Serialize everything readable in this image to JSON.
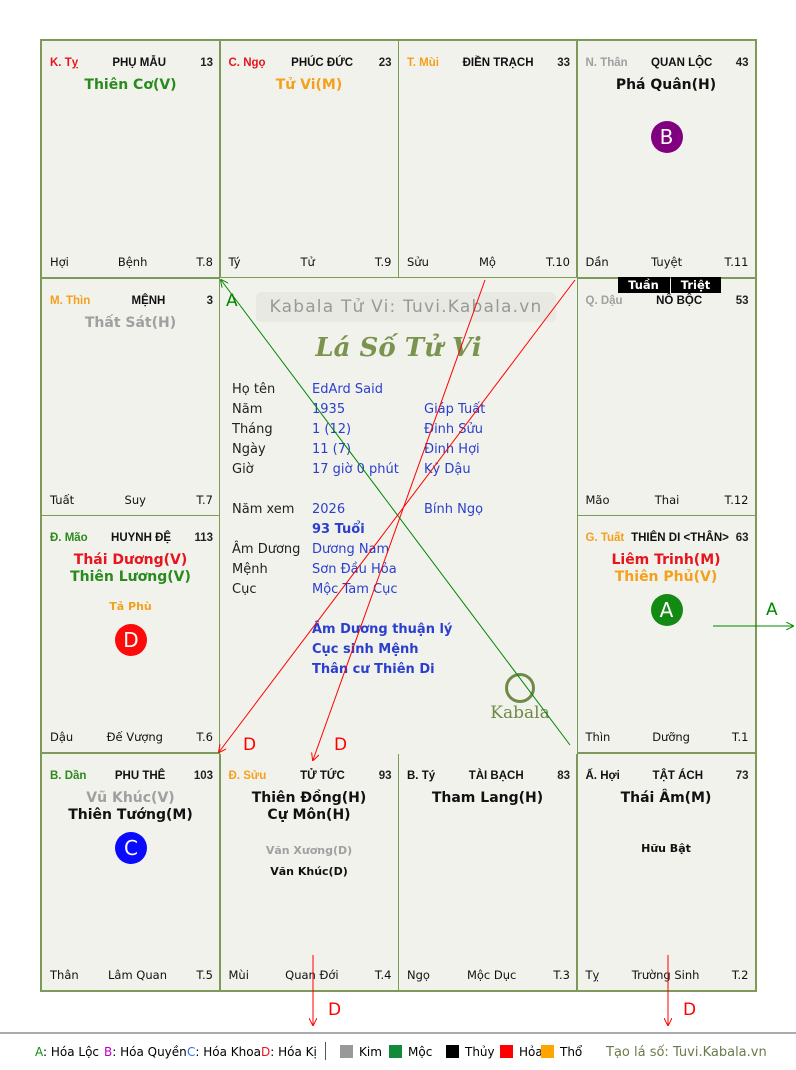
{
  "palaces": [
    {
      "can": "K. Tỵ",
      "can_color": "#e8141e",
      "name": "PHỤ MẪU",
      "num": "13",
      "stars": [
        {
          "t": "Thiên Cơ(V)",
          "c": "#2a8a1e"
        }
      ],
      "minor": [],
      "branch": "Hợi",
      "stage": "Bệnh",
      "t": "T.8"
    },
    {
      "can": "C. Ngọ",
      "can_color": "#e8141e",
      "name": "PHÚC ĐỨC",
      "num": "23",
      "stars": [
        {
          "t": "Tử Vi(M)",
          "c": "#f5a01c"
        }
      ],
      "minor": [],
      "branch": "Tý",
      "stage": "Tử",
      "t": "T.9"
    },
    {
      "can": "T. Mùi",
      "can_color": "#f5a01c",
      "name": "ĐIỀN TRẠCH",
      "num": "33",
      "stars": [],
      "minor": [],
      "branch": "Sửu",
      "stage": "Mộ",
      "t": "T.10"
    },
    {
      "can": "N. Thân",
      "can_color": "#a0a0a0",
      "name": "QUAN LỘC",
      "num": "43",
      "stars": [
        {
          "t": "Phá Quân(H)",
          "c": "#111"
        }
      ],
      "minor": [],
      "branch": "Dần",
      "stage": "Tuyệt",
      "t": "T.11",
      "badge": "B"
    },
    {
      "can": "M. Thìn",
      "can_color": "#f5a01c",
      "name": "MỆNH",
      "num": "3",
      "stars": [
        {
          "t": "Thất Sát(H)",
          "c": "#a0a0a0"
        }
      ],
      "minor": [],
      "branch": "Tuất",
      "stage": "Suy",
      "t": "T.7"
    },
    {
      "can": "Q. Dậu",
      "can_color": "#a0a0a0",
      "name": "NÔ BỘC",
      "num": "53",
      "stars": [],
      "minor": [],
      "branch": "Mão",
      "stage": "Thai",
      "t": "T.12"
    },
    {
      "can": "Đ. Mão",
      "can_color": "#2a8a1e",
      "name": "HUYNH ĐỆ",
      "num": "113",
      "stars": [
        {
          "t": "Thái Dương(V)",
          "c": "#e8141e"
        },
        {
          "t": "Thiên Lương(V)",
          "c": "#2a8a1e"
        }
      ],
      "minor": [
        {
          "t": "Tả Phù",
          "c": "#f5a01c"
        }
      ],
      "branch": "Dậu",
      "stage": "Đế Vượng",
      "t": "T.6",
      "badge": "D"
    },
    {
      "can": "G. Tuất",
      "can_color": "#f5a01c",
      "name": "THIÊN DI <THÂN>",
      "num": "63",
      "stars": [
        {
          "t": "Liêm Trinh(M)",
          "c": "#e8141e"
        },
        {
          "t": "Thiên Phủ(V)",
          "c": "#f5a01c"
        }
      ],
      "minor": [],
      "branch": "Thìn",
      "stage": "Dưỡng",
      "t": "T.1",
      "badge": "A"
    },
    {
      "can": "B. Dần",
      "can_color": "#2a8a1e",
      "name": "PHU THÊ",
      "num": "103",
      "stars": [
        {
          "t": "Vũ Khúc(V)",
          "c": "#a0a0a0"
        },
        {
          "t": "Thiên Tướng(M)",
          "c": "#111"
        }
      ],
      "minor": [],
      "branch": "Thân",
      "stage": "Lâm Quan",
      "t": "T.5",
      "badge": "C"
    },
    {
      "can": "Đ. Sửu",
      "can_color": "#f5a01c",
      "name": "TỬ TỨC",
      "num": "93",
      "stars": [
        {
          "t": "Thiên Đồng(H)",
          "c": "#111"
        },
        {
          "t": "Cự Môn(H)",
          "c": "#111"
        }
      ],
      "minor": [
        {
          "t": "Văn Xương(D)",
          "c": "#a0a0a0"
        },
        {
          "t": "Văn Khúc(D)",
          "c": "#111"
        }
      ],
      "branch": "Mùi",
      "stage": "Quan Đới",
      "t": "T.4"
    },
    {
      "can": "B. Tý",
      "can_color": "#111",
      "name": "TÀI BẠCH",
      "num": "83",
      "stars": [
        {
          "t": "Tham Lang(H)",
          "c": "#111"
        }
      ],
      "minor": [],
      "branch": "Ngọ",
      "stage": "Mộc Dục",
      "t": "T.3"
    },
    {
      "can": "Ấ. Hợi",
      "can_color": "#111",
      "name": "TẬT ÁCH",
      "num": "73",
      "stars": [
        {
          "t": "Thái Âm(M)",
          "c": "#111"
        }
      ],
      "minor": [
        {
          "t": "Hữu Bật",
          "c": "#111"
        }
      ],
      "branch": "Tỵ",
      "stage": "Trường Sinh",
      "t": "T.2"
    }
  ],
  "badge_colors": {
    "A": "#138a13",
    "B": "#800080",
    "C": "#0a0aff",
    "D": "#ff0a0a"
  },
  "tuan": "Tuần",
  "triet": "Triệt",
  "center": {
    "watermark": "Kabala Tử Vi: Tuvi.Kabala.vn",
    "title": "Lá Số Tử Vi",
    "rows": [
      {
        "k": "Họ tên",
        "v": "EdArd Said",
        "w": ""
      },
      {
        "k": "Năm",
        "v": "1935",
        "w": "Giáp Tuất"
      },
      {
        "k": "Tháng",
        "v": "1  (12)",
        "w": "Đinh Sửu"
      },
      {
        "k": "Ngày",
        "v": "11  (7)",
        "w": "Đinh Hợi"
      },
      {
        "k": "Giờ",
        "v": "17 giờ 0 phút",
        "w": "Kỷ Dậu"
      },
      {
        "k": "Năm xem",
        "v": "2026",
        "w": "Bính Ngọ"
      },
      {
        "k": "",
        "v": "93 Tuổi",
        "w": ""
      },
      {
        "k": "Âm Dương",
        "v": "Dương Nam",
        "w": ""
      },
      {
        "k": "Mệnh",
        "v": "Sơn Đầu Hỏa",
        "w": ""
      },
      {
        "k": "Cục",
        "v": "Mộc Tam Cục",
        "w": ""
      }
    ],
    "notes": [
      "Âm Dương thuận lý",
      "Cục sinh Mệnh",
      "Thân cư Thiên Di"
    ],
    "logo": "Kabala"
  },
  "arrow_labels": {
    "a1": "A",
    "a2": "A",
    "d1": "D",
    "d2": "D",
    "d3": "D",
    "d4": "D"
  },
  "legend": {
    "hoa": [
      {
        "k": "A",
        "c": "#138a13",
        "t": ": Hóa Lộc"
      },
      {
        "k": "B",
        "c": "#c000c0",
        "t": ": Hóa Quyền"
      },
      {
        "k": "C",
        "c": "#2f6bff",
        "t": ": Hóa Khoa"
      },
      {
        "k": "D",
        "c": "#e8141e",
        "t": ": Hóa Kị"
      }
    ],
    "elements": [
      {
        "t": "Kim",
        "c": "#999999"
      },
      {
        "t": "Mộc",
        "c": "#138a3a"
      },
      {
        "t": "Thủy",
        "c": "#000000"
      },
      {
        "t": "Hỏa",
        "c": "#ff0000"
      },
      {
        "t": "Thổ",
        "c": "#ffa500"
      }
    ],
    "credit": "Tạo lá số: Tuvi.Kabala.vn"
  }
}
